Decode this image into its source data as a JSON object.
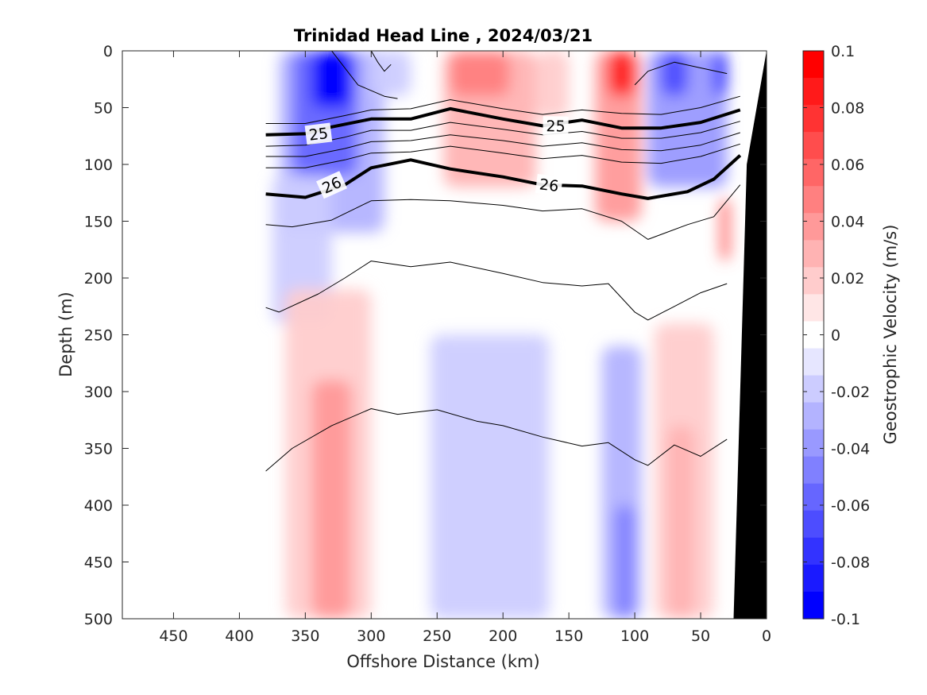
{
  "chart_data": {
    "type": "heatmap",
    "title": "Trinidad Head Line , 2024/03/21",
    "xlabel": "Offshore Distance (km)",
    "ylabel": "Depth (m)",
    "colorbar_label": "Geostrophic Velocity (m/s)",
    "xlim": [
      490,
      0
    ],
    "ylim": [
      0,
      500
    ],
    "x_ticks": [
      "450",
      "400",
      "350",
      "300",
      "250",
      "200",
      "150",
      "100",
      "50",
      "0"
    ],
    "y_ticks": [
      "0",
      "50",
      "100",
      "150",
      "200",
      "250",
      "300",
      "350",
      "400",
      "450",
      "500"
    ],
    "colorbar": {
      "range": [
        -0.1,
        0.1
      ],
      "ticks": [
        "0.1",
        "0.08",
        "0.06",
        "0.04",
        "0.02",
        "0",
        "-0.02",
        "-0.04",
        "-0.06",
        "-0.08",
        "-0.1"
      ],
      "colors": [
        "#0000ff",
        "#1a1aff",
        "#3333ff",
        "#4d4dff",
        "#6666ff",
        "#8080ff",
        "#9999ff",
        "#b3b3ff",
        "#ccccff",
        "#e6e6ff",
        "#ffffff",
        "#ffe6e6",
        "#ffcccc",
        "#ffb3b3",
        "#ff9999",
        "#ff8080",
        "#ff6666",
        "#ff4d4d",
        "#ff3333",
        "#ff1a1a",
        "#ff0000"
      ]
    },
    "velocity_patches": [
      {
        "x": [
          370,
          290
        ],
        "y": [
          0,
          160
        ],
        "value": -0.03
      },
      {
        "x": [
          360,
          310
        ],
        "y": [
          0,
          110
        ],
        "value": -0.06
      },
      {
        "x": [
          345,
          315
        ],
        "y": [
          0,
          50
        ],
        "value": -0.1
      },
      {
        "x": [
          300,
          270
        ],
        "y": [
          0,
          40
        ],
        "value": -0.02
      },
      {
        "x": [
          245,
          175
        ],
        "y": [
          0,
          120
        ],
        "value": 0.03
      },
      {
        "x": [
          240,
          195
        ],
        "y": [
          0,
          40
        ],
        "value": 0.05
      },
      {
        "x": [
          175,
          150
        ],
        "y": [
          0,
          60
        ],
        "value": 0.02
      },
      {
        "x": [
          130,
          95
        ],
        "y": [
          0,
          150
        ],
        "value": 0.04
      },
      {
        "x": [
          120,
          100
        ],
        "y": [
          0,
          40
        ],
        "value": 0.09
      },
      {
        "x": [
          90,
          30
        ],
        "y": [
          0,
          120
        ],
        "value": -0.04
      },
      {
        "x": [
          80,
          60
        ],
        "y": [
          0,
          40
        ],
        "value": -0.07
      },
      {
        "x": [
          40,
          30
        ],
        "y": [
          0,
          40
        ],
        "value": -0.08
      },
      {
        "x": [
          375,
          330
        ],
        "y": [
          110,
          240
        ],
        "value": -0.02
      },
      {
        "x": [
          365,
          300
        ],
        "y": [
          210,
          500
        ],
        "value": 0.02
      },
      {
        "x": [
          345,
          315
        ],
        "y": [
          290,
          500
        ],
        "value": 0.04
      },
      {
        "x": [
          255,
          165
        ],
        "y": [
          250,
          500
        ],
        "value": -0.02
      },
      {
        "x": [
          125,
          95
        ],
        "y": [
          260,
          500
        ],
        "value": -0.03
      },
      {
        "x": [
          115,
          100
        ],
        "y": [
          400,
          500
        ],
        "value": -0.05
      },
      {
        "x": [
          85,
          40
        ],
        "y": [
          240,
          500
        ],
        "value": 0.02
      },
      {
        "x": [
          75,
          55
        ],
        "y": [
          330,
          500
        ],
        "value": 0.03
      },
      {
        "x": [
          35,
          28
        ],
        "y": [
          130,
          185
        ],
        "value": 0.06
      }
    ],
    "density_contours": [
      {
        "level": "25",
        "major": true,
        "x": [
          380,
          350,
          330,
          300,
          270,
          240,
          200,
          170,
          140,
          110,
          80,
          50,
          20
        ],
        "y": [
          74,
          73,
          67,
          60,
          60,
          51,
          60,
          66,
          61,
          68,
          68,
          63,
          52
        ]
      },
      {
        "level": "26",
        "major": true,
        "x": [
          380,
          350,
          320,
          300,
          270,
          240,
          200,
          170,
          140,
          110,
          90,
          60,
          40,
          20
        ],
        "y": [
          126,
          129,
          118,
          103,
          96,
          104,
          111,
          118,
          119,
          126,
          130,
          124,
          113,
          92
        ]
      },
      {
        "level": "",
        "major": false,
        "x": [
          380,
          350,
          320,
          300,
          270,
          240,
          200,
          170,
          140,
          110,
          80,
          50,
          20
        ],
        "y": [
          64,
          64,
          57,
          52,
          51,
          43,
          51,
          56,
          52,
          55,
          56,
          50,
          40
        ]
      },
      {
        "level": "",
        "major": false,
        "x": [
          380,
          350,
          320,
          300,
          270,
          240,
          200,
          170,
          140,
          110,
          80,
          50,
          20
        ],
        "y": [
          84,
          83,
          76,
          70,
          70,
          63,
          69,
          74,
          71,
          77,
          77,
          72,
          62
        ]
      },
      {
        "level": "",
        "major": false,
        "x": [
          380,
          350,
          320,
          300,
          270,
          240,
          200,
          170,
          140,
          110,
          80,
          50,
          20
        ],
        "y": [
          93,
          93,
          86,
          80,
          79,
          74,
          79,
          84,
          81,
          87,
          88,
          83,
          72
        ]
      },
      {
        "level": "",
        "major": false,
        "x": [
          380,
          350,
          320,
          300,
          270,
          240,
          200,
          170,
          140,
          110,
          80,
          50,
          20
        ],
        "y": [
          103,
          103,
          96,
          90,
          89,
          84,
          90,
          95,
          92,
          98,
          99,
          93,
          82
        ]
      },
      {
        "level": "",
        "major": false,
        "x": [
          380,
          360,
          330,
          300,
          270,
          240,
          200,
          170,
          140,
          110,
          90,
          60,
          40,
          20
        ],
        "y": [
          153,
          155,
          149,
          132,
          131,
          132,
          136,
          141,
          139,
          150,
          166,
          153,
          146,
          118
        ]
      },
      {
        "level": "",
        "major": false,
        "x": [
          380,
          370,
          340,
          320,
          300,
          270,
          240,
          200,
          170,
          140,
          120,
          100,
          90,
          70,
          50,
          30
        ],
        "y": [
          226,
          230,
          214,
          200,
          185,
          190,
          186,
          196,
          204,
          207,
          205,
          230,
          237,
          225,
          213,
          205
        ]
      },
      {
        "level": "",
        "major": false,
        "x": [
          380,
          360,
          330,
          300,
          280,
          250,
          220,
          200,
          170,
          140,
          120,
          100,
          90,
          70,
          50,
          30
        ],
        "y": [
          370,
          350,
          330,
          315,
          320,
          316,
          326,
          330,
          340,
          348,
          345,
          360,
          365,
          347,
          357,
          342
        ]
      },
      {
        "level": "",
        "major": false,
        "x": [
          330,
          320,
          310,
          300,
          290,
          280
        ],
        "y": [
          0,
          15,
          30,
          35,
          40,
          42
        ]
      },
      {
        "level": "",
        "major": false,
        "x": [
          300,
          295,
          290,
          285
        ],
        "y": [
          0,
          10,
          18,
          12
        ]
      },
      {
        "level": "",
        "major": false,
        "x": [
          100,
          90,
          70,
          50,
          30
        ],
        "y": [
          30,
          18,
          10,
          15,
          20
        ]
      }
    ],
    "bathymetry_polygon": {
      "x": [
        25,
        0,
        0,
        15,
        25
      ],
      "y": [
        500,
        500,
        0,
        100,
        500
      ]
    }
  }
}
